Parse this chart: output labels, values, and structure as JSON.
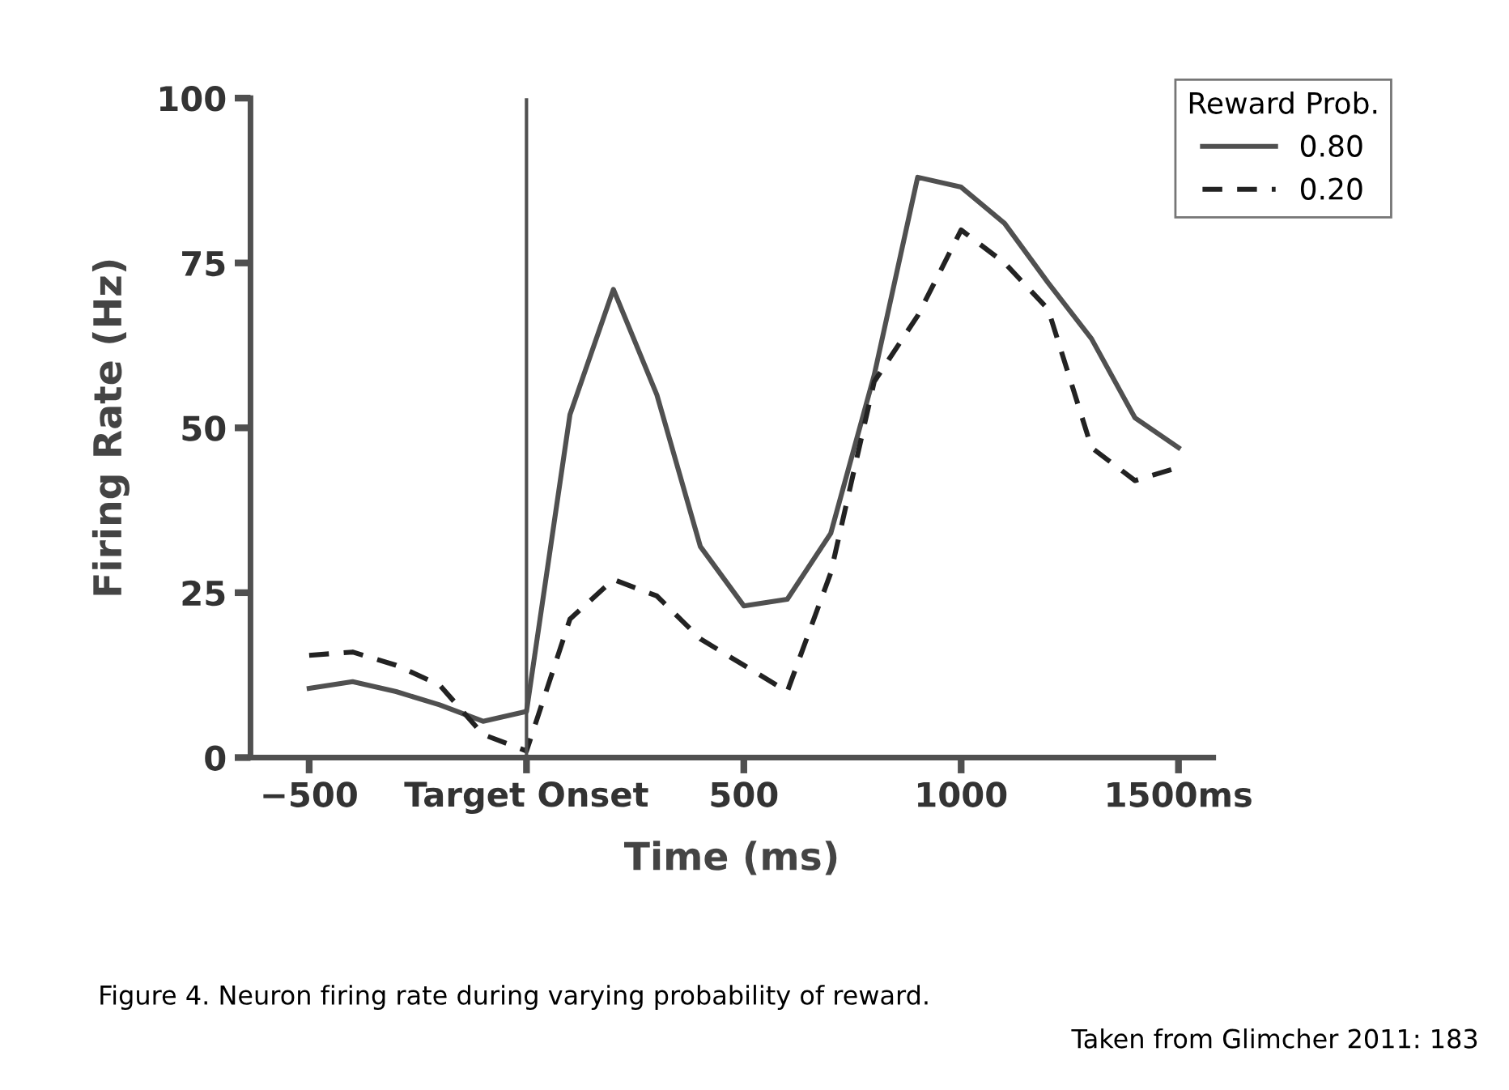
{
  "chart_data": {
    "type": "line",
    "xlabel": "Time (ms)",
    "ylabel": "Firing Rate (Hz)",
    "legend_title": "Reward Prob.",
    "x": [
      -500,
      -400,
      -300,
      -200,
      -100,
      0,
      100,
      200,
      300,
      400,
      500,
      600,
      700,
      800,
      900,
      1000,
      1100,
      1200,
      1300,
      1400,
      1500
    ],
    "series": [
      {
        "name": "0.80",
        "color": "#505050",
        "line_style": "solid",
        "values": [
          10.5,
          11.5,
          10,
          8,
          5.5,
          7,
          52,
          71,
          55,
          32,
          23,
          24,
          34,
          58,
          88,
          86.5,
          81,
          72,
          63.5,
          51.5,
          47
        ]
      },
      {
        "name": "0.20",
        "color": "#222222",
        "line_style": "dashed",
        "values": [
          15.5,
          16,
          14,
          11,
          3.5,
          1,
          21,
          27,
          24.5,
          18,
          14,
          10,
          28,
          57,
          67,
          80,
          75,
          68,
          47,
          42,
          44
        ]
      }
    ],
    "xlim": [
      -635,
      1580
    ],
    "ylim": [
      0,
      100
    ],
    "xticks": [
      {
        "value": -500,
        "label": "−500"
      },
      {
        "value": 0,
        "label": "Target Onset"
      },
      500,
      1000,
      {
        "value": 1500,
        "label": "1500ms"
      }
    ],
    "yticks": [
      0,
      25,
      50,
      75,
      100
    ],
    "ref_lines": [
      {
        "axis": "x",
        "value": 0,
        "color": "#505050"
      }
    ],
    "grid": false,
    "legend": "top right",
    "marker": "none",
    "annotations": [
      "Figure 4. Neuron firing rate during varying probability of reward.",
      "Taken from Glimcher 2011: 183"
    ]
  }
}
